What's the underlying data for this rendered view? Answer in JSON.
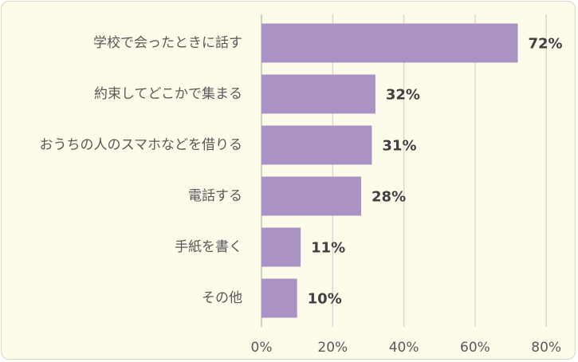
{
  "chart_data": {
    "type": "bar",
    "orientation": "horizontal",
    "categories": [
      "学校で会ったときに話す",
      "約束してどこかで集まる",
      "おうちの人のスマホなどを借りる",
      "電話する",
      "手紙を書く",
      "その他"
    ],
    "values": [
      72,
      32,
      31,
      28,
      11,
      10
    ],
    "value_labels": [
      "72%",
      "32%",
      "31%",
      "28%",
      "11%",
      "10%"
    ],
    "x_ticks": [
      "0%",
      "20%",
      "40%",
      "60%",
      "80%"
    ],
    "xlim": [
      0,
      80
    ],
    "grid": true,
    "colors": {
      "bar": "#ab92c4",
      "background": "#fdfbea",
      "grid": "#d9d9d9"
    }
  }
}
